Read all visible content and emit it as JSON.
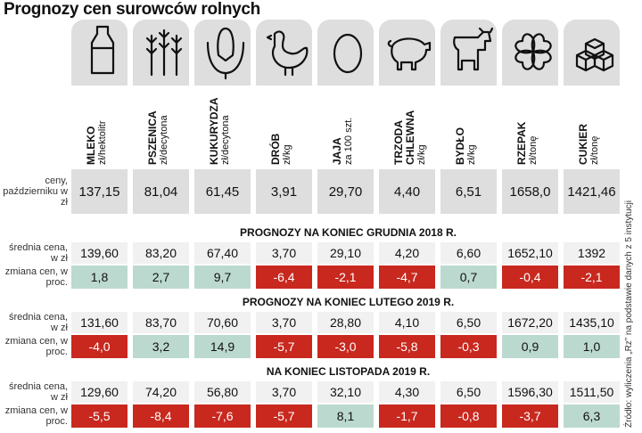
{
  "title": "Prognozy cen surowców rolnych",
  "columns": [
    {
      "name": "MLEKO",
      "unit": "zł/hektolitr"
    },
    {
      "name": "PSZENICA",
      "unit": "zł/decytona"
    },
    {
      "name": "KUKURYDZA",
      "unit": "zł/decytona"
    },
    {
      "name": "DRÓB",
      "unit": "zł/kg"
    },
    {
      "name": "JAJA",
      "unit": "za 100 szt."
    },
    {
      "name": "TRZODA CHLEWNA",
      "unit": "zł/kg"
    },
    {
      "name": "BYDŁO",
      "unit": "zł/kg"
    },
    {
      "name": "RZEPAK",
      "unit": "zł/tonę"
    },
    {
      "name": "CUKIER",
      "unit": "zł/tonę"
    }
  ],
  "current": {
    "label": "ceny, październiku w zł",
    "values": [
      "137,15",
      "81,04",
      "61,45",
      "3,91",
      "29,70",
      "4,40",
      "6,51",
      "1658,0",
      "1421,46"
    ]
  },
  "sections": [
    {
      "heading": "PROGNOZY NA KONIEC GRUDNIA 2018 R.",
      "price_label": "średnia cena, w zł",
      "prices": [
        "139,60",
        "83,20",
        "67,40",
        "3,70",
        "29,10",
        "4,20",
        "6,60",
        "1652,10",
        "1392"
      ],
      "change_label": "zmiana cen, w proc.",
      "changes": [
        "1,8",
        "2,7",
        "9,7",
        "-6,4",
        "-2,1",
        "-4,7",
        "0,7",
        "-0,4",
        "-2,1"
      ]
    },
    {
      "heading": "PROGNOZY NA KONIEC LUTEGO 2019 R.",
      "price_label": "średnia cena, w zł",
      "prices": [
        "131,60",
        "83,70",
        "70,60",
        "3,70",
        "28,80",
        "4,10",
        "6,50",
        "1672,20",
        "1435,10"
      ],
      "change_label": "zmiana cen, w proc.",
      "changes": [
        "-4,0",
        "3,2",
        "14,9",
        "-5,7",
        "-3,0",
        "-5,8",
        "-0,3",
        "0,9",
        "1,0"
      ]
    },
    {
      "heading": "NA KONIEC LISTOPADA 2019 R.",
      "price_label": "średnia cena, w zł",
      "prices": [
        "129,60",
        "74,20",
        "56,80",
        "3,70",
        "32,10",
        "4,30",
        "6,50",
        "1596,30",
        "1511,50"
      ],
      "change_label": "zmiana cen, w proc.",
      "changes": [
        "-5,5",
        "-8,4",
        "-7,6",
        "-5,7",
        "8,1",
        "-1,7",
        "-0,8",
        "-3,7",
        "6,3"
      ]
    }
  ],
  "source": "Źródło: wyliczenia „Rz” na podstawie danych z 5 instytucji"
}
